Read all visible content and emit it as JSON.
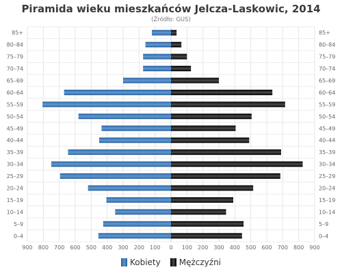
{
  "chart_data": {
    "type": "bar",
    "orientation": "horizontal-population-pyramid",
    "title": "Piramida wieku mieszkańców Jelcza-Laskowic, 2014",
    "subtitle": "(Źródło: GUS)",
    "categories": [
      "85+",
      "80–84",
      "75–79",
      "70–74",
      "65–69",
      "60–64",
      "55–59",
      "50–54",
      "45–49",
      "40–44",
      "35–39",
      "30–34",
      "25–29",
      "20–24",
      "15–19",
      "10–14",
      "5–9",
      "0–4"
    ],
    "series": [
      {
        "name": "Kobiety",
        "color": "#3f7ab8",
        "values": [
          120,
          160,
          175,
          175,
          300,
          670,
          805,
          580,
          435,
          450,
          645,
          750,
          695,
          520,
          405,
          350,
          425,
          455
        ]
      },
      {
        "name": "Mężczyźni",
        "color": "#1c1c1c",
        "values": [
          35,
          65,
          100,
          125,
          300,
          635,
          715,
          505,
          405,
          490,
          690,
          825,
          685,
          515,
          390,
          345,
          455,
          445
        ]
      }
    ],
    "x_ticks": [
      "900",
      "800",
      "700",
      "600",
      "500",
      "400",
      "300",
      "200",
      "100",
      "0",
      "100",
      "200",
      "300",
      "400",
      "500",
      "600",
      "700",
      "800",
      "900"
    ],
    "xlim": [
      -900,
      900
    ],
    "grid": true,
    "legend_position": "bottom"
  }
}
